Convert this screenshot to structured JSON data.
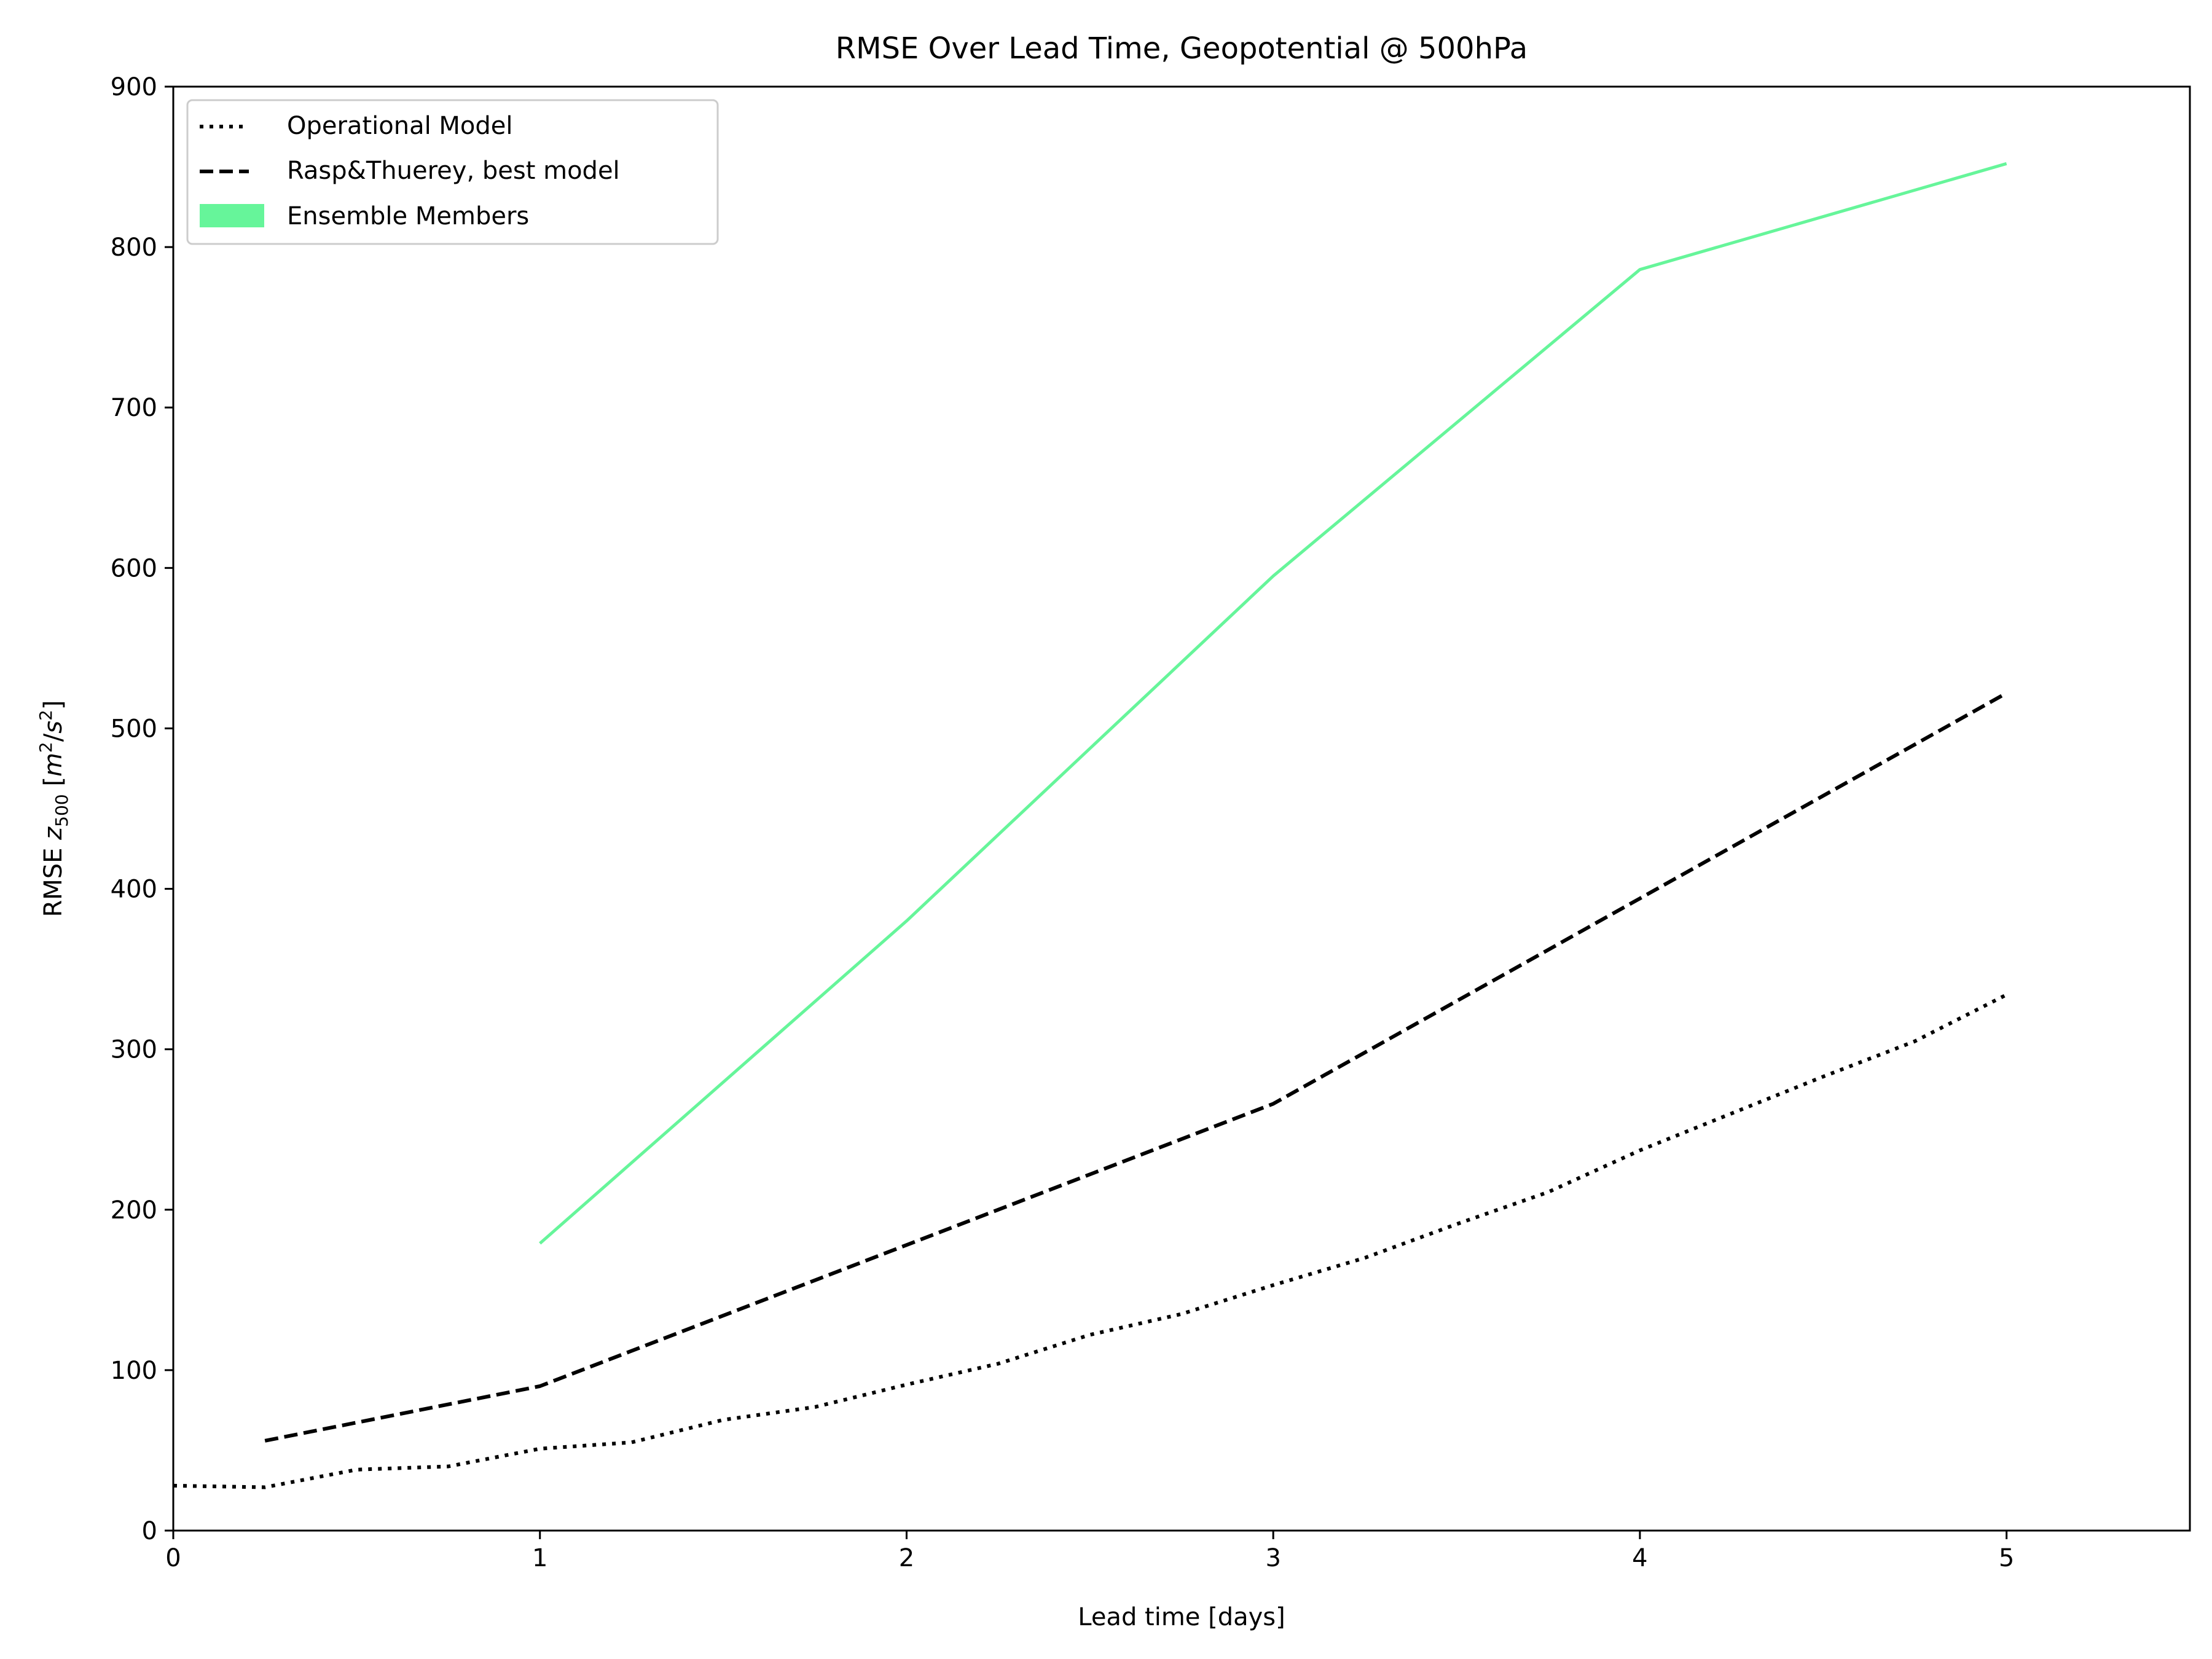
{
  "chart_data": {
    "type": "line",
    "title": "RMSE Over Lead Time, Geopotential @ 500hPa",
    "xlabel": "Lead time [days]",
    "ylabel_main": "RMSE ",
    "ylabel_var": "z",
    "ylabel_sub": "500",
    "ylabel_unit_open": " [",
    "ylabel_m": "m",
    "ylabel_s": "s",
    "ylabel_exp": "2",
    "ylabel_slash": "/",
    "ylabel_close": "]",
    "xlim": [
      0,
      5.5
    ],
    "ylim": [
      0,
      900
    ],
    "xticks": [
      0,
      1,
      2,
      3,
      4,
      5
    ],
    "xtick_labels": [
      "0",
      "1",
      "2",
      "3",
      "4",
      "5"
    ],
    "yticks": [
      0,
      100,
      200,
      300,
      400,
      500,
      600,
      700,
      800,
      900
    ],
    "ytick_labels": [
      "0",
      "100",
      "200",
      "300",
      "400",
      "500",
      "600",
      "700",
      "800",
      "900"
    ],
    "grid": false,
    "legend_position": "top-left",
    "legend": [
      "Operational Model",
      "Rasp&Thuerey, best model",
      "Ensemble Members"
    ],
    "series": [
      {
        "name": "Operational Model",
        "style": "dotted",
        "color": "#000000",
        "x": [
          0,
          0.25,
          0.5,
          0.75,
          1.0,
          1.25,
          1.5,
          1.75,
          2.0,
          2.25,
          2.5,
          2.75,
          3.0,
          3.25,
          3.5,
          3.75,
          4.0,
          4.25,
          4.5,
          4.75,
          5.0
        ],
        "y": [
          28,
          27,
          38,
          40,
          51,
          55,
          69,
          77,
          91,
          104,
          122,
          135,
          153,
          170,
          191,
          211,
          237,
          260,
          283,
          305,
          334
        ]
      },
      {
        "name": "Rasp&Thuerey, best model",
        "style": "dashed",
        "color": "#000000",
        "x": [
          0.25,
          1.0,
          2.0,
          3.0,
          4.0,
          5.0
        ],
        "y": [
          56,
          90,
          178,
          266,
          394,
          522
        ]
      },
      {
        "name": "Ensemble Members",
        "style": "solid",
        "color": "#66f59a",
        "x": [
          1.0,
          2.0,
          3.0,
          4.0,
          5.0
        ],
        "y": [
          179,
          380,
          595,
          786,
          852
        ]
      }
    ]
  }
}
